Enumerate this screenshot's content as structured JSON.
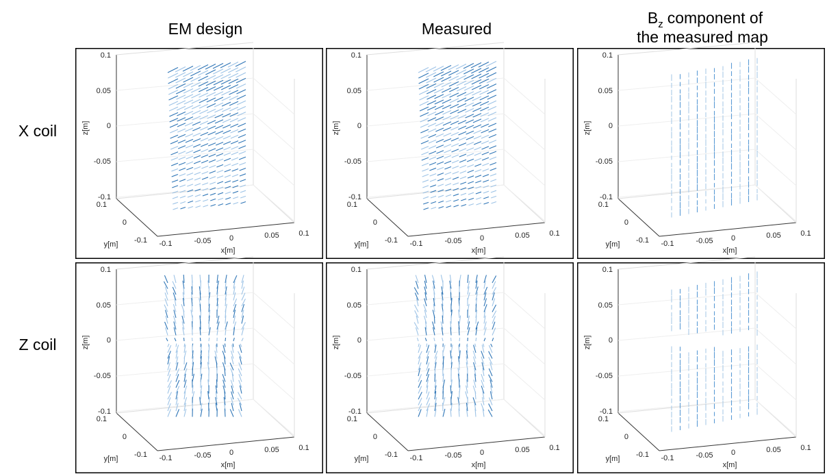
{
  "columns": [
    {
      "title": "EM design"
    },
    {
      "title": "Measured"
    },
    {
      "symbol": "B",
      "subscript": "z",
      "rest": "component of",
      "line2": "the measured map"
    }
  ],
  "rows": [
    {
      "label": "X coil"
    },
    {
      "label": "Z coil"
    }
  ],
  "axes": {
    "zticks": [
      "0.1",
      "0.05",
      "0",
      "-0.05",
      "-0.1"
    ],
    "yticks": [
      "0.1",
      "0",
      "-0.1"
    ],
    "xticks": [
      "-0.1",
      "-0.05",
      "0",
      "0.05",
      "0.1"
    ],
    "xlabel": "x[m]",
    "ylabel": "y[m]",
    "zlabel": "z[m]"
  }
}
